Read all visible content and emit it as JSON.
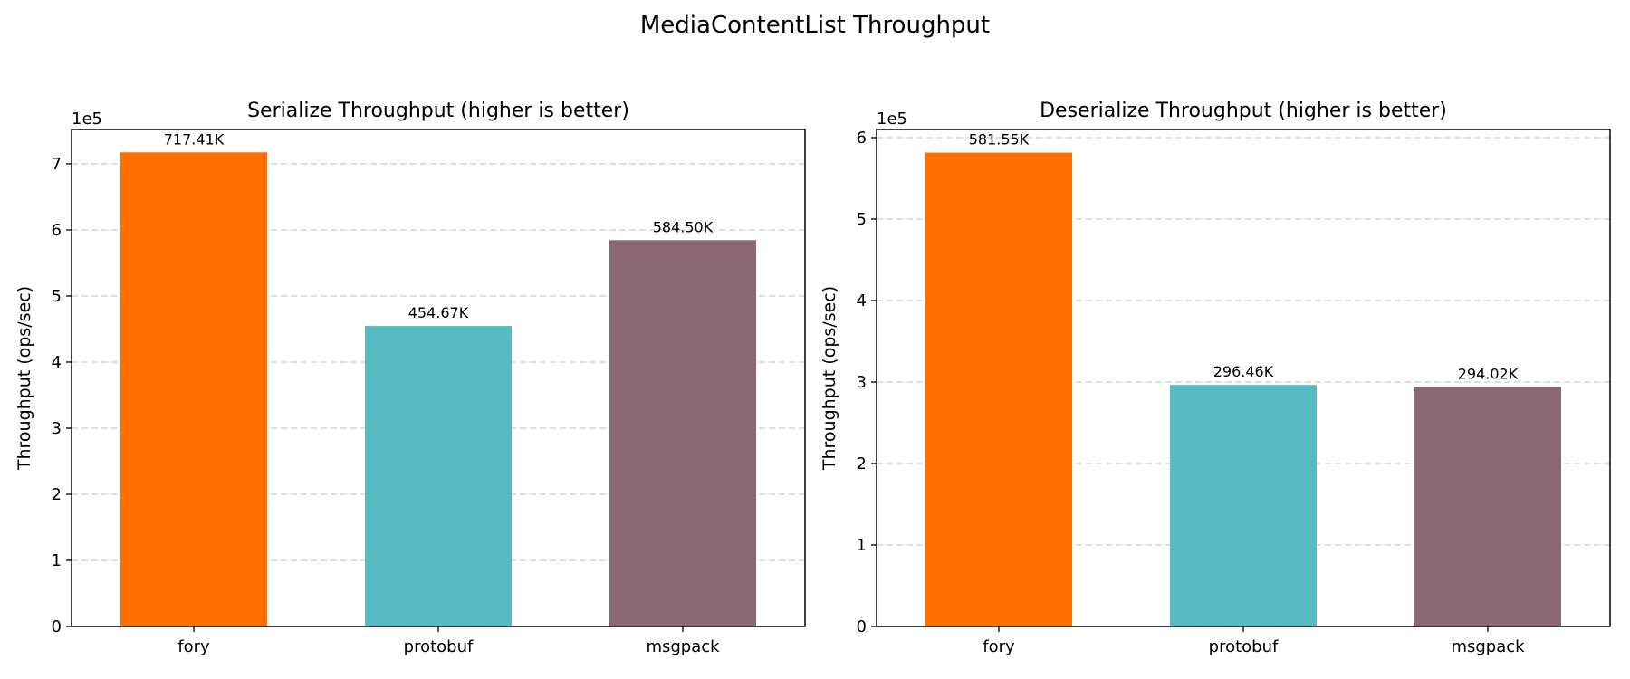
{
  "figure": {
    "title": "MediaContentList Throughput"
  },
  "chart_data": [
    {
      "type": "bar",
      "title": "Serialize Throughput (higher is better)",
      "xlabel": "",
      "ylabel": "Throughput (ops/sec)",
      "offset_label": "1e5",
      "categories": [
        "fory",
        "protobuf",
        "msgpack"
      ],
      "values": [
        717410,
        454670,
        584500
      ],
      "value_labels": [
        "717.41K",
        "454.67K",
        "584.50K"
      ],
      "colors": [
        "#ff6f00",
        "#56bcc2",
        "#8c6874"
      ],
      "ylim": [
        0,
        752000
      ],
      "yticks": [
        0,
        100000,
        200000,
        300000,
        400000,
        500000,
        600000,
        700000
      ],
      "ytick_labels": [
        "0",
        "1",
        "2",
        "3",
        "4",
        "5",
        "6",
        "7"
      ],
      "grid": "y-dashed",
      "legend": "none"
    },
    {
      "type": "bar",
      "title": "Deserialize Throughput (higher is better)",
      "xlabel": "",
      "ylabel": "Throughput (ops/sec)",
      "offset_label": "1e5",
      "categories": [
        "fory",
        "protobuf",
        "msgpack"
      ],
      "values": [
        581550,
        296460,
        294020
      ],
      "value_labels": [
        "581.55K",
        "296.46K",
        "294.02K"
      ],
      "colors": [
        "#ff6f00",
        "#56bcc2",
        "#8c6874"
      ],
      "ylim": [
        0,
        610000
      ],
      "yticks": [
        0,
        100000,
        200000,
        300000,
        400000,
        500000,
        600000
      ],
      "ytick_labels": [
        "0",
        "1",
        "2",
        "3",
        "4",
        "5",
        "6"
      ],
      "grid": "y-dashed",
      "legend": "none"
    }
  ]
}
